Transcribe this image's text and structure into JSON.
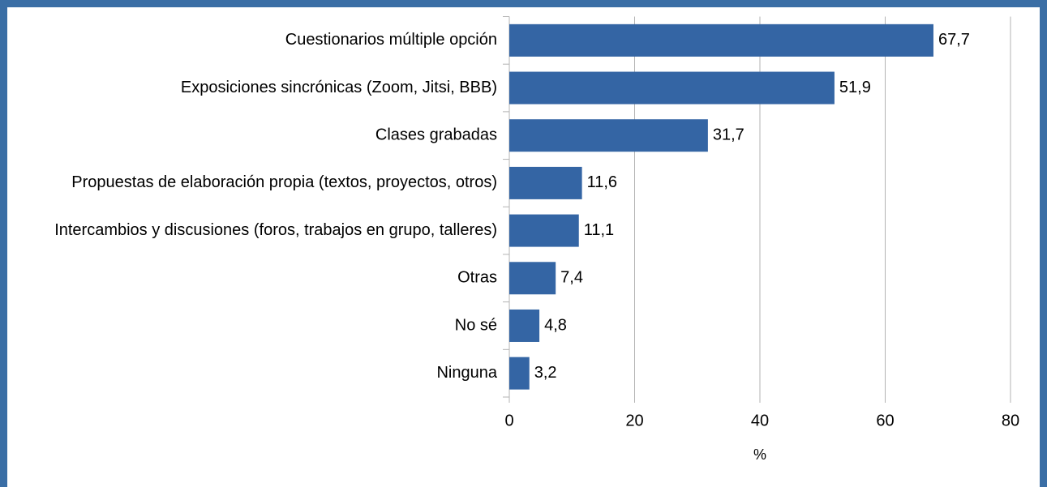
{
  "chart_data": {
    "type": "bar",
    "orientation": "horizontal",
    "categories": [
      "Cuestionarios múltiple opción",
      "Exposiciones sincrónicas (Zoom, Jitsi, BBB)",
      "Clases grabadas",
      "Propuestas de elaboración propia (textos, proyectos, otros)",
      "Intercambios y discusiones (foros, trabajos en grupo, talleres)",
      "Otras",
      "No sé",
      "Ninguna"
    ],
    "values": [
      67.7,
      51.9,
      31.7,
      11.6,
      11.1,
      7.4,
      4.8,
      3.2
    ],
    "value_labels": [
      "67,7",
      "51,9",
      "31,7",
      "11,6",
      "11,1",
      "7,4",
      "4,8",
      "3,2"
    ],
    "color": "#3465a4",
    "xlabel": "%",
    "xlim": [
      0,
      80
    ],
    "xticks": [
      0,
      20,
      40,
      60,
      80
    ],
    "grid": true
  }
}
